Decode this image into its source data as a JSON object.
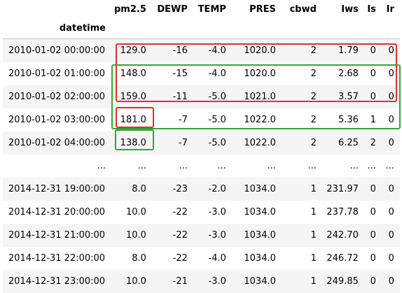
{
  "table": {
    "columns": [
      "pm2.5",
      "DEWP",
      "TEMP",
      "PRES",
      "cbwd",
      "Iws",
      "Is",
      "Ir"
    ],
    "index_name": "datetime",
    "rows": [
      {
        "idx": "2010-01-02 00:00:00",
        "cells": [
          "129.0",
          "-16",
          "-4.0",
          "1020.0",
          "2",
          "1.79",
          "0",
          "0"
        ]
      },
      {
        "idx": "2010-01-02 01:00:00",
        "cells": [
          "148.0",
          "-15",
          "-4.0",
          "1020.0",
          "2",
          "2.68",
          "0",
          "0"
        ]
      },
      {
        "idx": "2010-01-02 02:00:00",
        "cells": [
          "159.0",
          "-11",
          "-5.0",
          "1021.0",
          "2",
          "3.57",
          "0",
          "0"
        ]
      },
      {
        "idx": "2010-01-02 03:00:00",
        "cells": [
          "181.0",
          "-7",
          "-5.0",
          "1022.0",
          "2",
          "5.36",
          "1",
          "0"
        ]
      },
      {
        "idx": "2010-01-02 04:00:00",
        "cells": [
          "138.0",
          "-7",
          "-5.0",
          "1022.0",
          "2",
          "6.25",
          "2",
          "0"
        ]
      },
      {
        "idx": "...",
        "cells": [
          "...",
          "...",
          "...",
          "...",
          "...",
          "...",
          "...",
          "..."
        ]
      },
      {
        "idx": "2014-12-31 19:00:00",
        "cells": [
          "8.0",
          "-23",
          "-2.0",
          "1034.0",
          "1",
          "231.97",
          "0",
          "0"
        ]
      },
      {
        "idx": "2014-12-31 20:00:00",
        "cells": [
          "10.0",
          "-22",
          "-3.0",
          "1034.0",
          "1",
          "237.78",
          "0",
          "0"
        ]
      },
      {
        "idx": "2014-12-31 21:00:00",
        "cells": [
          "10.0",
          "-22",
          "-3.0",
          "1034.0",
          "1",
          "242.70",
          "0",
          "0"
        ]
      },
      {
        "idx": "2014-12-31 22:00:00",
        "cells": [
          "8.0",
          "-22",
          "-4.0",
          "1034.0",
          "1",
          "246.72",
          "0",
          "0"
        ]
      },
      {
        "idx": "2014-12-31 23:00:00",
        "cells": [
          "10.0",
          "-21",
          "-3.0",
          "1034.0",
          "1",
          "249.85",
          "0",
          "0"
        ]
      }
    ]
  },
  "colors": {
    "red_box": "#e0302a",
    "green_box": "#2ea82e"
  }
}
